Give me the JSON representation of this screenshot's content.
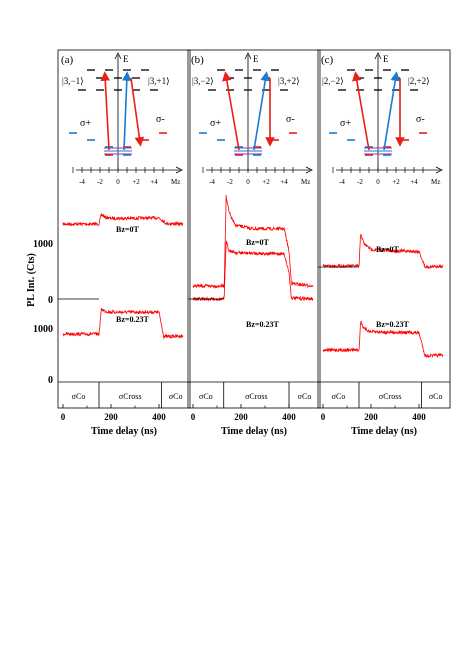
{
  "figure": {
    "ylabel": "PL Int. (Cts)",
    "ytick_lower_zero": "0",
    "ytick_lower_1000": "1000",
    "ytick_upper_zero": "0",
    "ytick_upper_1000": "1000",
    "xlabel": "Time delay (ns)",
    "xticks": [
      "0",
      "200",
      "400"
    ],
    "colors": {
      "trace": "#ff0000",
      "sigma_plus": "#1a7bd6",
      "sigma_minus": "#e8201a",
      "level": "#000000"
    }
  },
  "panels": [
    {
      "letter": "(a)",
      "ket_left": "|3,−1⟩",
      "ket_right": "|3,+1⟩",
      "energy_label": "E",
      "sigma_plus": "σ+",
      "sigma_minus": "σ-",
      "mz_ticks": [
        "-4",
        "-2",
        "0",
        "+2",
        "+4"
      ],
      "mz_label": "Mz",
      "upper_label": "Bz=0T",
      "lower_label": "Bz=0.23T",
      "pol_left": "σCo",
      "pol_mid": "σCross",
      "pol_right": "σCo"
    },
    {
      "letter": "(b)",
      "ket_left": "|3,−2⟩",
      "ket_right": "|3,+2⟩",
      "energy_label": "E",
      "sigma_plus": "σ+",
      "sigma_minus": "σ-",
      "mz_ticks": [
        "-4",
        "-2",
        "0",
        "+2",
        "+4"
      ],
      "mz_label": "Mz",
      "upper_label": "Bz=0T",
      "lower_label": "Bz=0.23T",
      "pol_left": "σCo",
      "pol_mid": "σCross",
      "pol_right": "σCo"
    },
    {
      "letter": "(c)",
      "ket_left": "|2,−2⟩",
      "ket_right": "|2,+2⟩",
      "energy_label": "E",
      "sigma_plus": "σ+",
      "sigma_minus": "σ-",
      "mz_ticks": [
        "-4",
        "-2",
        "0",
        "+2",
        "+4"
      ],
      "mz_label": "Mz",
      "upper_label": "Bz=0T",
      "lower_label": "Bz=0.23T",
      "pol_left": "σCo",
      "pol_mid": "σCross",
      "pol_right": "σCo"
    }
  ],
  "chart_data": {
    "type": "line",
    "xlabel": "Time delay (ns)",
    "ylabel": "PL Int. (Cts)",
    "xlim": [
      0,
      500
    ],
    "xticks": [
      0,
      200,
      400
    ],
    "panels": [
      {
        "letter": "(a)",
        "series": [
          {
            "name": "Bz=0T",
            "x": [
              0,
              150,
              160,
              175,
              200,
              300,
              400,
              415,
              430,
              500
            ],
            "y": [
              1330,
              1330,
              1520,
              1460,
              1440,
              1440,
              1450,
              1400,
              1340,
              1330
            ]
          },
          {
            "name": "Bz=0.23T",
            "x": [
              0,
              150,
              160,
              175,
              200,
              300,
              400,
              410,
              420,
              500
            ],
            "y": [
              820,
              820,
              1300,
              1260,
              1240,
              1240,
              1240,
              1000,
              770,
              780
            ]
          }
        ]
      },
      {
        "letter": "(b)",
        "series": [
          {
            "name": "Bz=0T",
            "x": [
              0,
              130,
              138,
              150,
              175,
              250,
              380,
              400,
              410,
              500
            ],
            "y": [
              230,
              230,
              1950,
              1650,
              1400,
              1330,
              1330,
              900,
              280,
              230
            ]
          },
          {
            "name": "Bz=0.23T",
            "x": [
              0,
              130,
              138,
              150,
              175,
              250,
              380,
              400,
              410,
              500
            ],
            "y": [
              -10,
              -10,
              1100,
              930,
              880,
              870,
              860,
              500,
              10,
              -10
            ]
          }
        ]
      },
      {
        "letter": "(c)",
        "series": [
          {
            "name": "Bz=0T",
            "x": [
              0,
              150,
              157,
              170,
              200,
              300,
              400,
              415,
              425,
              500
            ],
            "y": [
              1420,
              1420,
              2050,
              1850,
              1740,
              1710,
              1700,
              1520,
              1400,
              1420
            ]
          },
          {
            "name": "Bz=0.23T",
            "x": [
              0,
              150,
              157,
              170,
              200,
              300,
              400,
              415,
              425,
              500
            ],
            "y": [
              830,
              830,
              1390,
              1240,
              1180,
              1170,
              1160,
              900,
              720,
              730
            ]
          }
        ]
      }
    ]
  }
}
